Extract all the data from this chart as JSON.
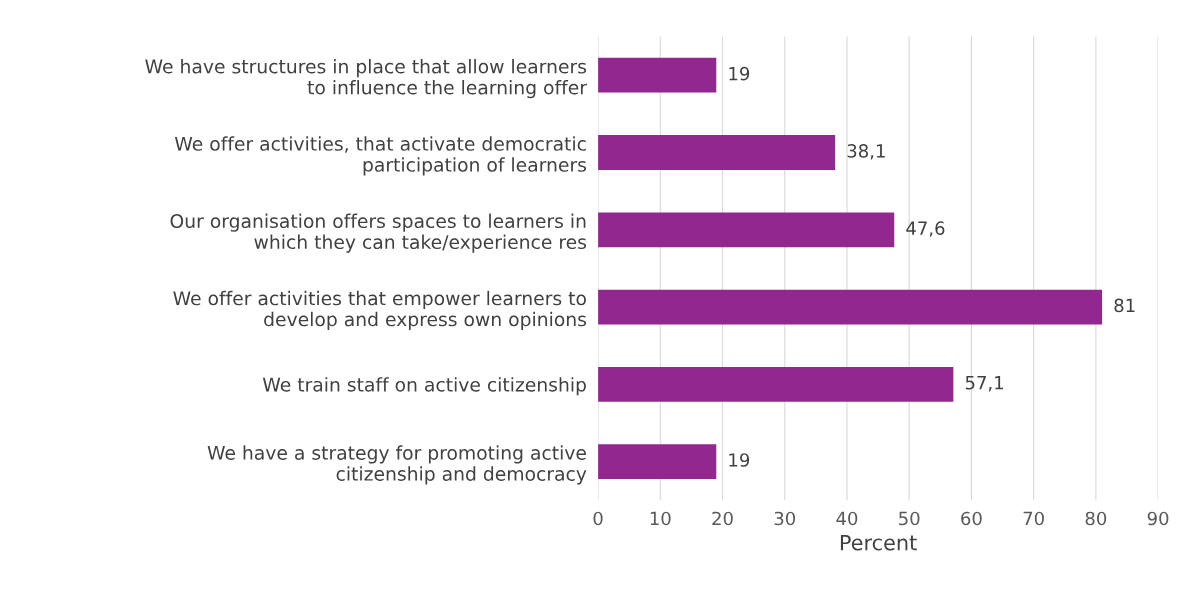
{
  "chart_data": {
    "type": "bar",
    "orientation": "horizontal",
    "xlabel": "Percent",
    "categories": [
      "We have structures in place that allow learners\nto influence the learning offer",
      "We offer activities, that activate democratic\nparticipation of learners",
      "Our organisation offers spaces to learners in\nwhich they can take/experience res",
      "We offer activities that empower learners to\ndevelop and express own opinions",
      "We train staff on active citizenship",
      "We have a strategy for promoting active\ncitizenship and democracy"
    ],
    "values": [
      19,
      38.1,
      47.6,
      81,
      57.1,
      19
    ],
    "value_labels": [
      "19",
      "38,1",
      "47,6",
      "81",
      "57,1",
      "19"
    ],
    "color": "#92278f",
    "xlim": [
      0,
      90
    ],
    "xticks": [
      0,
      10,
      20,
      30,
      40,
      50,
      60,
      70,
      80,
      90
    ],
    "grid": "x",
    "legend": false
  }
}
